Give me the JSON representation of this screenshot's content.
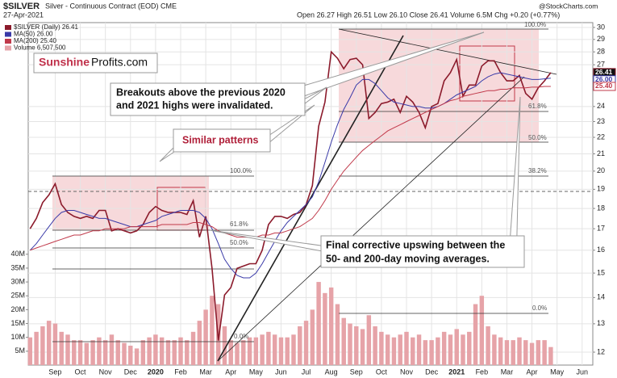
{
  "chart_data": {
    "type": "line",
    "title": "$SILVER",
    "subtitle": "Silver - Continuous Contract (EOD) CME",
    "date": "27-Apr-2021",
    "quote": "Open 26.27  High 26.51  Low 26.10  Close 26.41  Volume 6.5M  Chg +0.20 (+0.77%)",
    "source": "@StockCharts.com",
    "brand": [
      "Sunshine",
      "Profits.com"
    ],
    "annotations": [
      "Breakouts above the previous 2020",
      "and 2021 highs were invalidated.",
      "Similar patterns",
      "Final corrective upswing between the",
      "50- and 200-day moving averages."
    ],
    "fib_labels": [
      "100.0%",
      "61.8%",
      "50.0%",
      "38.2%",
      "0.0%"
    ],
    "last_value_labels": [
      "26.41",
      "26.00",
      "25.40"
    ],
    "categories": [
      null,
      null,
      null,
      null,
      "Sep",
      null,
      null,
      null,
      "Oct",
      null,
      null,
      null,
      "Nov",
      null,
      null,
      null,
      "Dec",
      null,
      null,
      null,
      "2020",
      null,
      null,
      null,
      "Feb",
      null,
      null,
      null,
      "Mar",
      null,
      null,
      null,
      "Apr",
      null,
      null,
      null,
      "May",
      null,
      null,
      null,
      "Jun",
      null,
      null,
      null,
      "Jul",
      null,
      null,
      null,
      "Aug",
      null,
      null,
      null,
      "Sep",
      null,
      null,
      null,
      "Oct",
      null,
      null,
      null,
      "Nov",
      null,
      null,
      null,
      "Dec",
      null,
      null,
      null,
      "2021",
      null,
      null,
      null,
      "Feb",
      null,
      null,
      null,
      "Mar",
      null,
      null,
      null,
      "Apr",
      null,
      null,
      null,
      "May",
      null,
      null,
      null,
      "Jun",
      null
    ],
    "series": [
      {
        "name": "$SILVER (Daily) 26.41",
        "color": "#8b1a2b",
        "values": [
          17.0,
          17.5,
          18.3,
          18.7,
          19.3,
          18.2,
          17.8,
          17.6,
          17.5,
          17.6,
          17.5,
          17.9,
          17.9,
          16.9,
          17.0,
          16.9,
          16.8,
          16.9,
          17.2,
          17.8,
          18.1,
          17.9,
          17.8,
          17.8,
          17.8,
          17.7,
          18.4,
          16.6,
          17.6,
          15.2,
          12.4,
          14.1,
          14.4,
          15.2,
          15.3,
          15.4,
          15.4,
          16.0,
          17.2,
          17.6,
          17.6,
          17.5,
          17.7,
          17.8,
          18.2,
          19.2,
          22.7,
          24.3,
          28.0,
          27.5,
          26.7,
          27.4,
          27.5,
          27.0,
          23.2,
          23.6,
          24.2,
          24.3,
          24.5,
          23.6,
          24.7,
          24.3,
          23.6,
          22.6,
          24.0,
          24.2,
          25.8,
          26.4,
          27.4,
          24.7,
          25.5,
          25.5,
          26.9,
          27.3,
          27.3,
          26.4,
          25.8,
          25.8,
          26.2,
          24.9,
          24.5,
          25.3,
          25.8,
          26.41,
          null,
          null,
          null,
          null,
          null,
          null
        ]
      },
      {
        "name": "MA(50) 26.00",
        "color": "#3a3aa8",
        "values": [
          16.0,
          16.3,
          16.7,
          17.1,
          17.5,
          17.8,
          17.9,
          17.9,
          17.8,
          17.7,
          17.6,
          17.5,
          17.5,
          17.4,
          17.3,
          17.2,
          17.1,
          17.1,
          17.2,
          17.3,
          17.4,
          17.6,
          17.7,
          17.8,
          17.9,
          17.9,
          17.9,
          17.8,
          17.5,
          17.0,
          16.3,
          15.6,
          15.2,
          14.9,
          14.8,
          14.8,
          15.0,
          15.4,
          15.9,
          16.4,
          16.9,
          17.3,
          17.6,
          17.9,
          18.2,
          18.6,
          19.4,
          20.5,
          21.7,
          22.8,
          23.8,
          24.6,
          25.5,
          25.9,
          25.9,
          25.6,
          25.1,
          24.6,
          24.3,
          24.2,
          24.1,
          24.0,
          24.0,
          23.9,
          23.9,
          24.0,
          24.2,
          24.5,
          24.8,
          25.0,
          25.2,
          25.4,
          25.8,
          26.1,
          26.3,
          26.4,
          26.3,
          26.2,
          26.1,
          26.0,
          25.9,
          25.9,
          25.95,
          26.0,
          null,
          null,
          null,
          null,
          null,
          null
        ]
      },
      {
        "name": "MA(200) 25.40",
        "color": "#c0394a",
        "values": [
          16.0,
          16.1,
          16.2,
          16.3,
          16.4,
          16.5,
          16.6,
          16.7,
          16.7,
          16.8,
          16.9,
          16.9,
          17.0,
          17.0,
          17.0,
          17.0,
          17.1,
          17.1,
          17.1,
          17.1,
          17.1,
          17.2,
          17.2,
          17.2,
          17.2,
          17.2,
          17.3,
          17.3,
          17.2,
          17.1,
          16.9,
          16.8,
          16.7,
          16.6,
          16.6,
          16.6,
          16.6,
          16.7,
          16.7,
          16.8,
          16.8,
          16.9,
          17.0,
          17.1,
          17.3,
          17.5,
          17.9,
          18.4,
          19.0,
          19.5,
          20.0,
          20.4,
          20.8,
          21.2,
          21.5,
          21.8,
          22.1,
          22.4,
          22.6,
          22.8,
          23.0,
          23.2,
          23.4,
          23.6,
          23.8,
          24.0,
          24.2,
          24.4,
          24.5,
          24.7,
          24.8,
          24.9,
          25.0,
          25.1,
          25.1,
          25.2,
          25.2,
          25.3,
          25.3,
          25.3,
          25.35,
          25.35,
          25.4,
          25.4,
          null,
          null,
          null,
          null,
          null,
          null
        ]
      },
      {
        "name": "Volume 6,507,500",
        "color": "#e6a3a8",
        "axis": "y2",
        "values": [
          10000000,
          12000000,
          14000000,
          16000000,
          15000000,
          12000000,
          11000000,
          9000000,
          9000000,
          8000000,
          9000000,
          10000000,
          9000000,
          11000000,
          9000000,
          8000000,
          7000000,
          6000000,
          9000000,
          10000000,
          11000000,
          10000000,
          9000000,
          9000000,
          10000000,
          9000000,
          12000000,
          16000000,
          20000000,
          25000000,
          22000000,
          14000000,
          9000000,
          8000000,
          9000000,
          10000000,
          10000000,
          11000000,
          12000000,
          11000000,
          10000000,
          10000000,
          11000000,
          14000000,
          16000000,
          20000000,
          30000000,
          26000000,
          28000000,
          22000000,
          17000000,
          15000000,
          14000000,
          13000000,
          18000000,
          14000000,
          12000000,
          11000000,
          10000000,
          11000000,
          12000000,
          10000000,
          11000000,
          9000000,
          9000000,
          10000000,
          12000000,
          11000000,
          13000000,
          11000000,
          12000000,
          22000000,
          25000000,
          14000000,
          11000000,
          10000000,
          9000000,
          9000000,
          10000000,
          9000000,
          8000000,
          9000000,
          9000000,
          6507500,
          null,
          null,
          null,
          null,
          null,
          null
        ]
      }
    ],
    "log_scale": true,
    "ylim": [
      11.57,
      30.41
    ],
    "yticks": [
      12,
      13,
      14,
      15,
      16,
      17,
      18,
      19,
      20,
      21,
      22,
      23,
      24,
      27,
      28,
      29,
      30
    ],
    "y2lim": [
      0,
      123600000
    ],
    "y2ticks": [
      {
        "value": 5000000,
        "label": "5M"
      },
      {
        "value": 10000000,
        "label": "10M"
      },
      {
        "value": 15000000,
        "label": "15M"
      },
      {
        "value": 20000000,
        "label": "20M"
      },
      {
        "value": 25000000,
        "label": "25M"
      },
      {
        "value": 30000000,
        "label": "30M"
      },
      {
        "value": 35000000,
        "label": "35M"
      },
      {
        "value": 40000000,
        "label": "40M"
      }
    ],
    "grid": true,
    "legend": "top-left"
  }
}
